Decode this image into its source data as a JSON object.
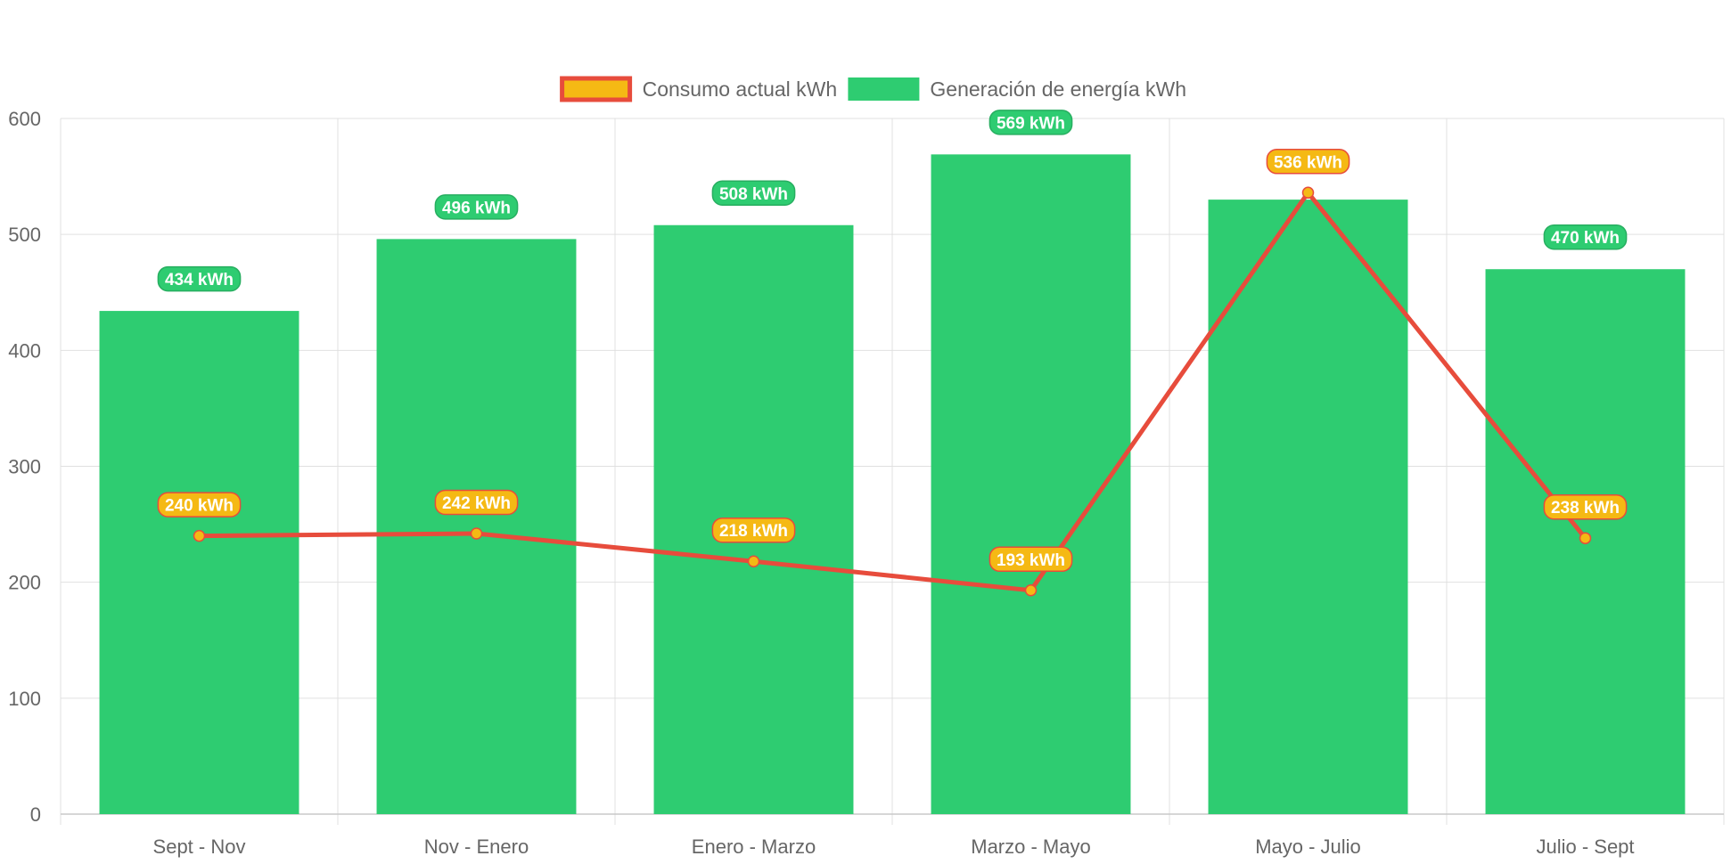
{
  "chart_data": {
    "type": "bar",
    "categories": [
      "Sept - Nov",
      "Nov - Enero",
      "Enero - Marzo",
      "Marzo - Mayo",
      "Mayo - Julio",
      "Julio - Sept"
    ],
    "ylim": [
      0,
      600
    ],
    "y_ticks": [
      0,
      100,
      200,
      300,
      400,
      500,
      600
    ],
    "grid": true,
    "legend_position": "top-center",
    "series": [
      {
        "name": "Consumo actual kWh",
        "type": "line",
        "values": [
          240,
          242,
          218,
          193,
          536,
          238
        ],
        "labels": [
          "240 kWh",
          "242 kWh",
          "218 kWh",
          "193 kWh",
          "536 kWh",
          "238 kWh"
        ],
        "line_color": "#e74c3c",
        "point_color": "#f5b914"
      },
      {
        "name": "Generación de energía kWh",
        "type": "bar",
        "values": [
          434,
          496,
          508,
          569,
          530,
          470
        ],
        "labels": [
          "434 kWh",
          "496 kWh",
          "508 kWh",
          "569 kWh",
          "",
          "470 kWh"
        ],
        "color": "#2ecc71",
        "label_border": "#27ae60"
      }
    ]
  }
}
